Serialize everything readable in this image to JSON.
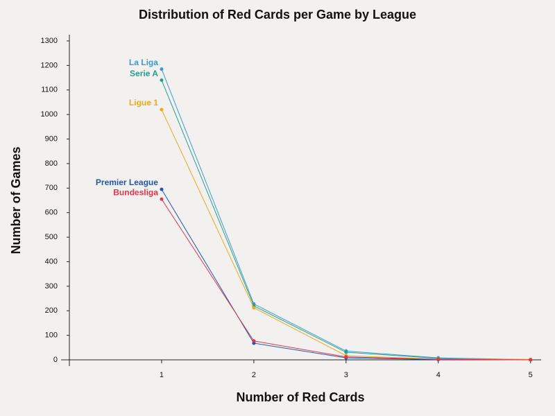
{
  "chart_data": {
    "type": "line",
    "title": "Distribution of Red Cards per Game by League",
    "x_label": "Number of Red Cards",
    "y_label": "Number of Games",
    "x": [
      1,
      2,
      3,
      4,
      5
    ],
    "series": [
      {
        "name": "La Liga",
        "color": "#3d9ad6",
        "values": [
          1185,
          228,
          36,
          8,
          1
        ]
      },
      {
        "name": "Serie A",
        "color": "#26a08a",
        "values": [
          1140,
          220,
          31,
          6,
          1
        ]
      },
      {
        "name": "Ligue 1",
        "color": "#f0a81c",
        "values": [
          1020,
          212,
          17,
          3,
          2
        ]
      },
      {
        "name": "Premier League",
        "color": "#2156b8",
        "values": [
          695,
          68,
          8,
          1,
          0
        ]
      },
      {
        "name": "Bundesliga",
        "color": "#e0364a",
        "values": [
          655,
          77,
          12,
          2,
          0
        ]
      }
    ],
    "xlim": [
      0,
      5.1
    ],
    "xticks": [
      1,
      2,
      3,
      4,
      5
    ],
    "ylim": [
      0,
      1300
    ],
    "yticks": [
      0,
      100,
      200,
      300,
      400,
      500,
      600,
      700,
      800,
      900,
      1000,
      1100,
      1200,
      1300
    ]
  }
}
